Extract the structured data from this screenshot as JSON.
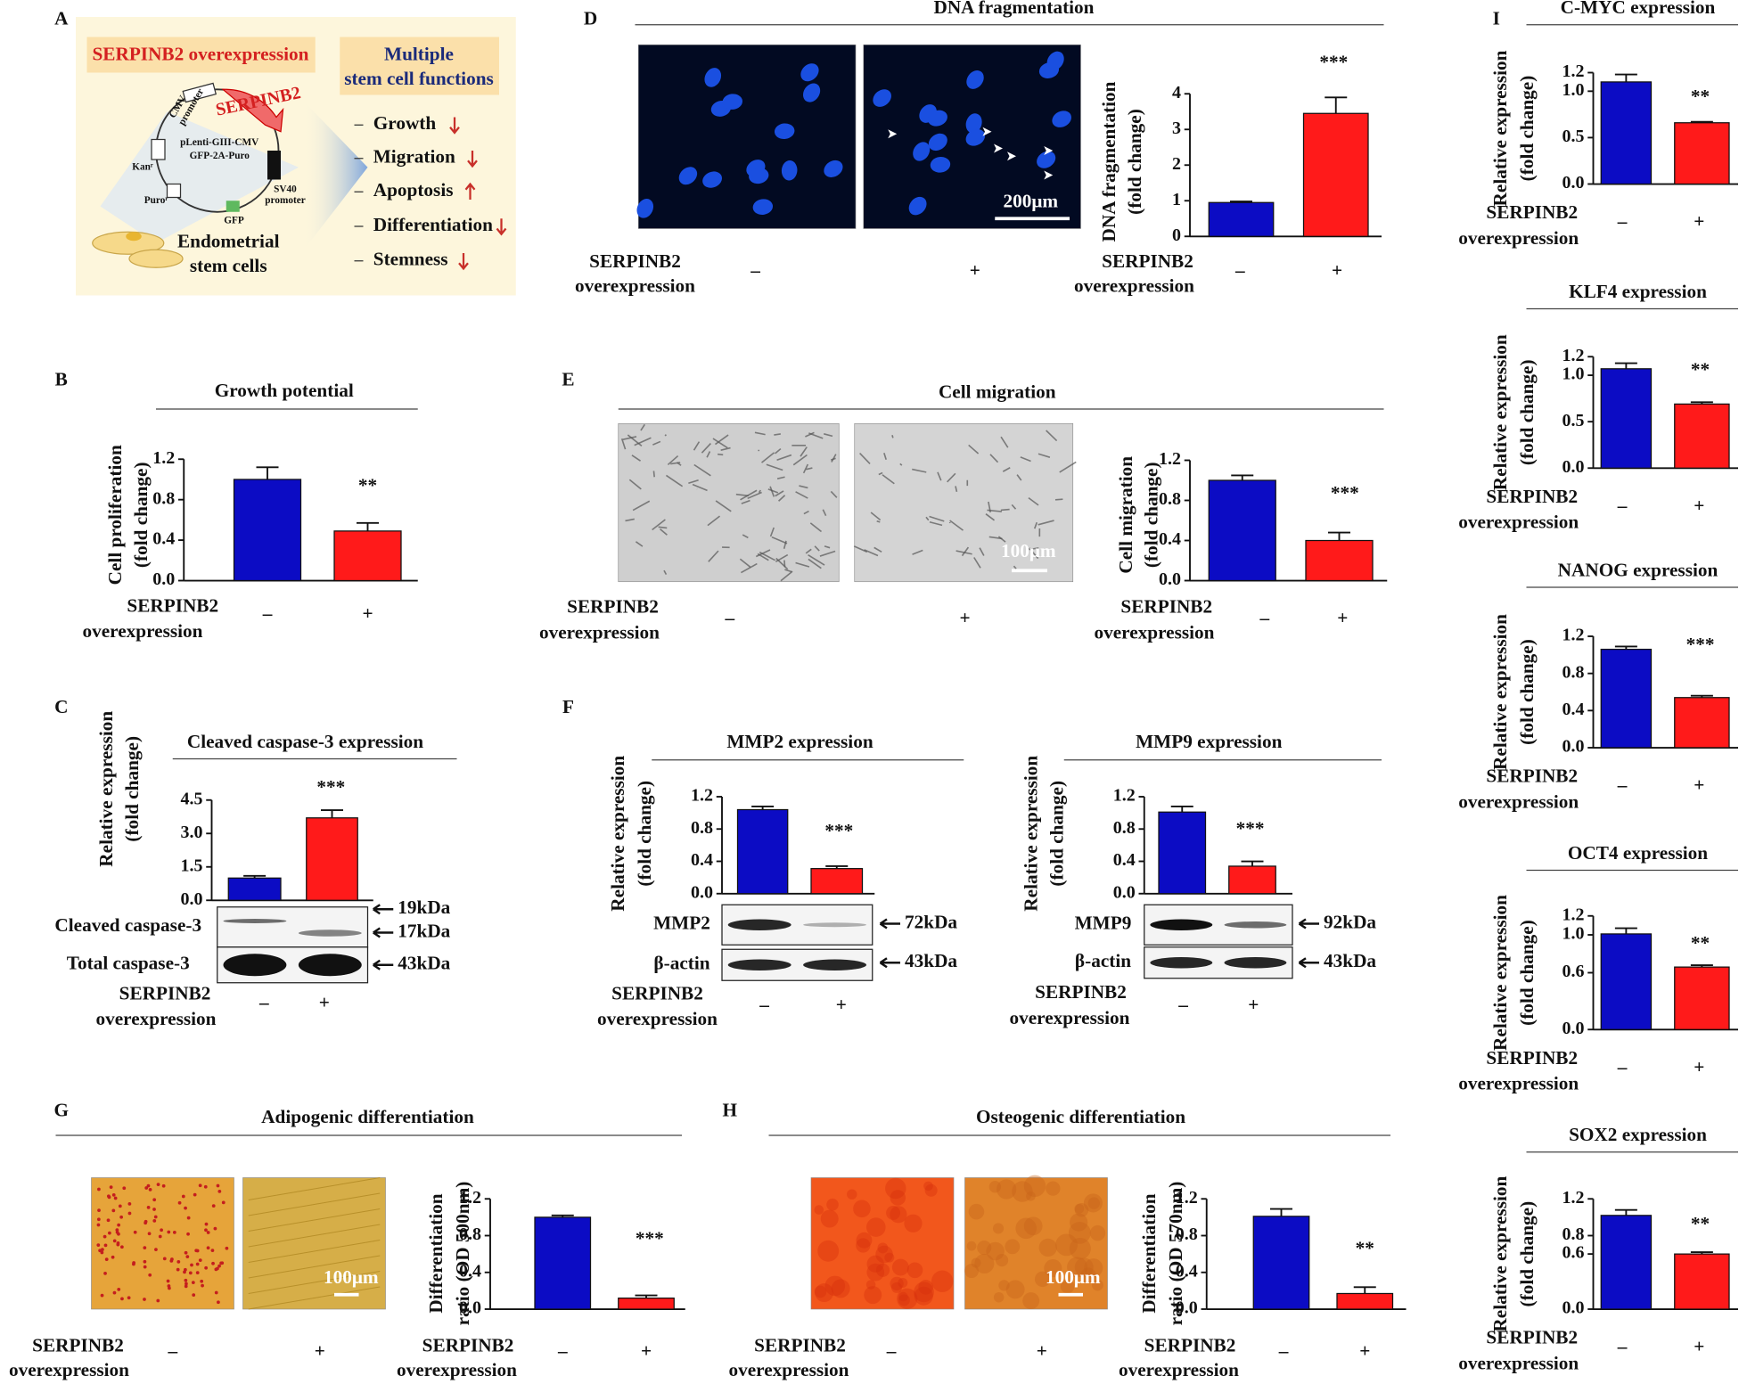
{
  "diagram": {
    "panel": "A",
    "construct": "SERPINB2 overexpression",
    "functions_title": [
      "Multiple",
      "stem cell functions"
    ],
    "functions": [
      "Growth",
      "Migration",
      "Apoptosis",
      "Differentiation",
      "Stemness"
    ],
    "plasmid_labels": [
      "CMV",
      "promoter",
      "SERPINB2",
      "pLenti-GIII-CMV",
      "GFP-2A-Puro",
      "SV40",
      "promoter",
      "Kanʳ",
      "Puroʳ",
      "GFP"
    ],
    "cells": [
      "Endometrial",
      "stem cells"
    ]
  },
  "micrographs": [
    {
      "xlabel": [
        "SERPINB2",
        "overexpression"
      ],
      "categories": [
        "–",
        "+"
      ],
      "scale_bar": "200μm"
    },
    {
      "xlabel": [
        "SERPINB2",
        "overexpression"
      ],
      "categories": [
        "–",
        "+"
      ],
      "scale_bar": "100μm"
    },
    {
      "xlabel": [
        "SERPINB2",
        "overexpression"
      ],
      "categories": [
        "–",
        "+"
      ],
      "scale_bar": "100μm"
    },
    {
      "xlabel": [
        "SERPINB2",
        "overexpression"
      ],
      "categories": [
        "–",
        "+"
      ],
      "scale_bar": "100μm"
    }
  ],
  "blots": [
    {
      "rows": [
        {
          "label": "Cleaved caspase-3",
          "markers": [
            "19kDa",
            "17kDa"
          ]
        },
        {
          "label": "Total caspase-3",
          "markers": [
            "43kDa"
          ]
        }
      ]
    },
    {
      "rows": [
        {
          "label": "MMP2",
          "markers": [
            "72kDa"
          ]
        },
        {
          "label": "β-actin",
          "markers": [
            "43kDa"
          ]
        }
      ]
    },
    {
      "rows": [
        {
          "label": "MMP9",
          "markers": [
            "92kDa"
          ]
        },
        {
          "label": "β-actin",
          "markers": [
            "43kDa"
          ]
        }
      ]
    }
  ],
  "chart_data": [
    {
      "type": "bar",
      "panel": "B",
      "title": "Growth potential",
      "ylabel": [
        "Cell proliferation",
        "(fold change)"
      ],
      "xlabel": [
        "SERPINB2",
        "overexpression"
      ],
      "categories": [
        "–",
        "+"
      ],
      "values": [
        1.0,
        0.49
      ],
      "errors": [
        0.12,
        0.08
      ],
      "significance": "**",
      "colors": [
        "#0c0cc4",
        "#ff1a1a"
      ],
      "ylim": [
        0,
        1.2
      ],
      "yticks": [
        {
          "value": 0,
          "label": "0.0"
        },
        {
          "value": 0.4,
          "label": "0.4"
        },
        {
          "value": 0.8,
          "label": "0.8"
        },
        {
          "value": 1.2,
          "label": "1.2"
        }
      ]
    },
    {
      "type": "bar",
      "panel": "C",
      "title": "Cleaved caspase-3 expression",
      "ylabel": [
        "Relative expression",
        "(fold change)"
      ],
      "xlabel": [
        "SERPINB2",
        "overexpression"
      ],
      "categories": [
        "–",
        "+"
      ],
      "values": [
        1.0,
        3.7
      ],
      "errors": [
        0.1,
        0.35
      ],
      "significance": "***",
      "colors": [
        "#0c0cc4",
        "#ff1a1a"
      ],
      "ylim": [
        0,
        4.5
      ],
      "yticks": [
        {
          "value": 0,
          "label": "0.0"
        },
        {
          "value": 1.5,
          "label": "1.5"
        },
        {
          "value": 3,
          "label": "3.0"
        },
        {
          "value": 4.5,
          "label": "4.5"
        }
      ]
    },
    {
      "type": "bar",
      "panel": "D",
      "title": "DNA fragmentation",
      "ylabel": [
        "DNA fragmentation",
        "(fold change)"
      ],
      "xlabel": [
        "SERPINB2",
        "overexpression"
      ],
      "categories": [
        "–",
        "+"
      ],
      "values": [
        0.95,
        3.45
      ],
      "errors": [
        0.03,
        0.45
      ],
      "significance": "***",
      "colors": [
        "#0c0cc4",
        "#ff1a1a"
      ],
      "ylim": [
        0,
        4
      ],
      "yticks": [
        0,
        1,
        2,
        3,
        4
      ]
    },
    {
      "type": "bar",
      "panel": "E",
      "title": "Cell migration",
      "ylabel": [
        "Cell migration",
        "(fold change)"
      ],
      "xlabel": [
        "SERPINB2",
        "overexpression"
      ],
      "categories": [
        "–",
        "+"
      ],
      "values": [
        1.0,
        0.4
      ],
      "errors": [
        0.05,
        0.08
      ],
      "significance": "***",
      "colors": [
        "#0c0cc4",
        "#ff1a1a"
      ],
      "ylim": [
        0,
        1.2
      ],
      "yticks": [
        {
          "value": 0,
          "label": "0.0"
        },
        {
          "value": 0.4,
          "label": "0.4"
        },
        {
          "value": 0.8,
          "label": "0.8"
        },
        {
          "value": 1.2,
          "label": "1.2"
        }
      ]
    },
    {
      "type": "bar",
      "panel": "F",
      "title": "MMP2 expression",
      "ylabel": [
        "Relative expression",
        "(fold change)"
      ],
      "xlabel": [
        "SERPINB2",
        "overexpression"
      ],
      "categories": [
        "–",
        "+"
      ],
      "values": [
        1.04,
        0.31
      ],
      "errors": [
        0.04,
        0.03
      ],
      "significance": "***",
      "colors": [
        "#0c0cc4",
        "#ff1a1a"
      ],
      "ylim": [
        0,
        1.2
      ],
      "yticks": [
        {
          "value": 0,
          "label": "0.0"
        },
        {
          "value": 0.4,
          "label": "0.4"
        },
        {
          "value": 0.8,
          "label": "0.8"
        },
        {
          "value": 1.2,
          "label": "1.2"
        }
      ]
    },
    {
      "type": "bar",
      "title": "MMP9 expression",
      "ylabel": [
        "Relative expression",
        "(fold change)"
      ],
      "xlabel": [
        "SERPINB2",
        "overexpression"
      ],
      "categories": [
        "–",
        "+"
      ],
      "values": [
        1.01,
        0.34
      ],
      "errors": [
        0.07,
        0.06
      ],
      "significance": "***",
      "colors": [
        "#0c0cc4",
        "#ff1a1a"
      ],
      "ylim": [
        0,
        1.2
      ],
      "yticks": [
        {
          "value": 0,
          "label": "0.0"
        },
        {
          "value": 0.4,
          "label": "0.4"
        },
        {
          "value": 0.8,
          "label": "0.8"
        },
        {
          "value": 1.2,
          "label": "1.2"
        }
      ]
    },
    {
      "type": "bar",
      "panel": "G",
      "title": "Adipogenic differentiation",
      "ylabel": [
        "Differentiation",
        "ratio (OD 500nm)"
      ],
      "xlabel": [
        "SERPINB2",
        "overexpression"
      ],
      "categories": [
        "–",
        "+"
      ],
      "values": [
        1.0,
        0.12
      ],
      "errors": [
        0.02,
        0.03
      ],
      "significance": "***",
      "colors": [
        "#0c0cc4",
        "#ff1a1a"
      ],
      "ylim": [
        0,
        1.2
      ],
      "yticks": [
        {
          "value": 0,
          "label": "0.0"
        },
        {
          "value": 0.4,
          "label": "0.4"
        },
        {
          "value": 0.8,
          "label": "0.8"
        },
        {
          "value": 1.2,
          "label": "1.2"
        }
      ]
    },
    {
      "type": "bar",
      "panel": "H",
      "title": "Osteogenic differentiation",
      "ylabel": [
        "Differentiation",
        "ratio (OD 570nm)"
      ],
      "xlabel": [
        "SERPINB2",
        "overexpression"
      ],
      "categories": [
        "–",
        "+"
      ],
      "values": [
        1.01,
        0.17
      ],
      "errors": [
        0.08,
        0.07
      ],
      "significance": "**",
      "colors": [
        "#0c0cc4",
        "#ff1a1a"
      ],
      "ylim": [
        0,
        1.2
      ],
      "yticks": [
        {
          "value": 0,
          "label": "0.0"
        },
        {
          "value": 0.4,
          "label": "0.4"
        },
        {
          "value": 0.8,
          "label": "0.8"
        },
        {
          "value": 1.2,
          "label": "1.2"
        }
      ]
    },
    {
      "type": "bar",
      "panel": "I",
      "title": "C-MYC expression",
      "ylabel": [
        "Relative expression",
        "(fold change)"
      ],
      "xlabel": [
        "SERPINB2",
        "overexpression"
      ],
      "categories": [
        "–",
        "+"
      ],
      "values": [
        1.1,
        0.66
      ],
      "errors": [
        0.08,
        0.01
      ],
      "significance": "**",
      "colors": [
        "#0c0cc4",
        "#ff1a1a"
      ],
      "ylim": [
        0,
        1.2
      ],
      "yticks": [
        {
          "value": 0,
          "label": "0.0"
        },
        {
          "value": 0.5,
          "label": "0.5"
        },
        {
          "value": 1,
          "label": "1.0"
        },
        {
          "value": 1.2,
          "label": "1.2"
        }
      ]
    },
    {
      "type": "bar",
      "title": "KLF4 expression",
      "ylabel": [
        "Relative expression",
        "(fold change)"
      ],
      "xlabel": [
        "SERPINB2",
        "overexpression"
      ],
      "categories": [
        "–",
        "+"
      ],
      "values": [
        1.07,
        0.69
      ],
      "errors": [
        0.06,
        0.02
      ],
      "significance": "**",
      "colors": [
        "#0c0cc4",
        "#ff1a1a"
      ],
      "ylim": [
        0,
        1.2
      ],
      "yticks": [
        {
          "value": 0,
          "label": "0.0"
        },
        {
          "value": 0.5,
          "label": "0.5"
        },
        {
          "value": 1,
          "label": "1.0"
        },
        {
          "value": 1.2,
          "label": "1.2"
        }
      ]
    },
    {
      "type": "bar",
      "title": "NANOG expression",
      "ylabel": [
        "Relative expression",
        "(fold change)"
      ],
      "xlabel": [
        "SERPINB2",
        "overexpression"
      ],
      "categories": [
        "–",
        "+"
      ],
      "values": [
        1.06,
        0.54
      ],
      "errors": [
        0.03,
        0.02
      ],
      "significance": "***",
      "colors": [
        "#0c0cc4",
        "#ff1a1a"
      ],
      "ylim": [
        0,
        1.2
      ],
      "yticks": [
        {
          "value": 0,
          "label": "0.0"
        },
        {
          "value": 0.4,
          "label": "0.4"
        },
        {
          "value": 0.8,
          "label": "0.8"
        },
        {
          "value": 1.2,
          "label": "1.2"
        }
      ]
    },
    {
      "type": "bar",
      "title": "OCT4 expression",
      "ylabel": [
        "Relative expression",
        "(fold change)"
      ],
      "xlabel": [
        "SERPINB2",
        "overexpression"
      ],
      "categories": [
        "–",
        "+"
      ],
      "values": [
        1.01,
        0.66
      ],
      "errors": [
        0.06,
        0.02
      ],
      "significance": "**",
      "colors": [
        "#0c0cc4",
        "#ff1a1a"
      ],
      "ylim": [
        0,
        1.2
      ],
      "yticks": [
        {
          "value": 0,
          "label": "0.0"
        },
        {
          "value": 0.6,
          "label": "0.6"
        },
        {
          "value": 1,
          "label": "1.0"
        },
        {
          "value": 1.2,
          "label": "1.2"
        }
      ]
    },
    {
      "type": "bar",
      "title": "SOX2 expression",
      "ylabel": [
        "Relative expression",
        "(fold change)"
      ],
      "xlabel": [
        "SERPINB2",
        "overexpression"
      ],
      "categories": [
        "–",
        "+"
      ],
      "values": [
        1.02,
        0.6
      ],
      "errors": [
        0.06,
        0.02
      ],
      "significance": "**",
      "colors": [
        "#0c0cc4",
        "#ff1a1a"
      ],
      "ylim": [
        0,
        1.2
      ],
      "yticks": [
        {
          "value": 0,
          "label": "0.0"
        },
        {
          "value": 0.6,
          "label": "0.6"
        },
        {
          "value": 0.8,
          "label": "0.8"
        },
        {
          "value": 1.2,
          "label": "1.2"
        }
      ]
    }
  ]
}
